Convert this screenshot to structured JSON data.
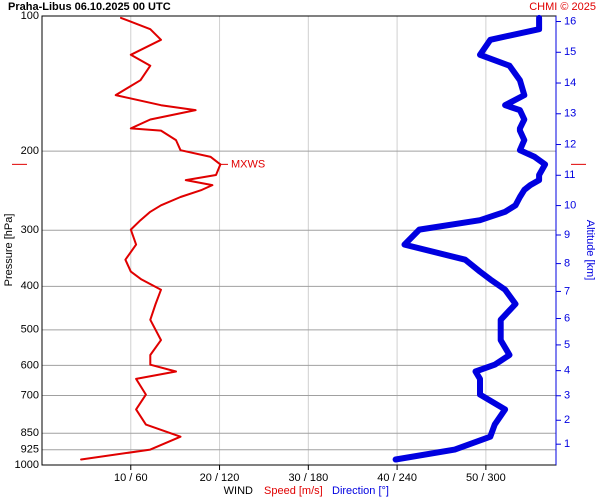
{
  "chart_data": {
    "type": "profile",
    "title": "Praha-Libus    06.10.2025 00 UTC",
    "credit": "CHMI © 2025",
    "ylabel": "Pressure [hPa]",
    "y2label": "Altitude [km]",
    "xlabel": "WIND",
    "ylog": true,
    "yinverted": true,
    "ylim": [
      100,
      1000
    ],
    "yticks": [
      100,
      200,
      300,
      400,
      500,
      600,
      700,
      850,
      925,
      1000
    ],
    "y2ticks": [
      1,
      2,
      3,
      4,
      5,
      6,
      7,
      8,
      9,
      10,
      11,
      12,
      13,
      14,
      15,
      16
    ],
    "xlim": [
      0,
      57.9
    ],
    "x2lim": [
      0,
      347.4
    ],
    "xticks": [
      {
        "value": 10,
        "label": "10 / 60"
      },
      {
        "value": 20,
        "label": "20 / 120"
      },
      {
        "value": 30,
        "label": "30 / 180"
      },
      {
        "value": 40,
        "label": "40 / 240"
      },
      {
        "value": 50,
        "label": "50 / 300"
      }
    ],
    "grid": true,
    "y": [
      972,
      924,
      865,
      813,
      752,
      697,
      643,
      619,
      598,
      569,
      527,
      475,
      438,
      407,
      386,
      371,
      349,
      323,
      299,
      285,
      273,
      264,
      253,
      244,
      238,
      232,
      226,
      214,
      206,
      199,
      189,
      180,
      178,
      170,
      162,
      158,
      150,
      139,
      129,
      122,
      113,
      107,
      101
    ],
    "series": [
      {
        "name": "Speed [m/s]",
        "color": "#e00000",
        "values": [
          4.4,
          12.2,
          15.6,
          11.7,
          10.6,
          11.7,
          10.6,
          15.1,
          12.2,
          12.2,
          13.4,
          12.2,
          12.8,
          13.4,
          11.2,
          10.0,
          9.4,
          10.6,
          10.0,
          11.1,
          12.2,
          13.4,
          15.6,
          18.0,
          19.2,
          16.2,
          19.6,
          20.1,
          19.0,
          15.6,
          15.1,
          13.4,
          10.0,
          12.2,
          17.3,
          13.4,
          8.3,
          11.1,
          12.2,
          10.0,
          13.4,
          12.2,
          8.9
        ]
      },
      {
        "name": "Direction [°]",
        "color": "#0000e0",
        "axis": "x2",
        "values": [
          239,
          279,
          303,
          306,
          313,
          296,
          296,
          293,
          306,
          316,
          310,
          310,
          320,
          313,
          303,
          296,
          286,
          245,
          255,
          296,
          313,
          320,
          323,
          326,
          330,
          336,
          336,
          340,
          333,
          323,
          326,
          323,
          323,
          326,
          323,
          313,
          326,
          323,
          316,
          296,
          303,
          336,
          336
        ]
      }
    ],
    "annotations": [
      {
        "text": "MXWS",
        "y": 214
      }
    ]
  }
}
